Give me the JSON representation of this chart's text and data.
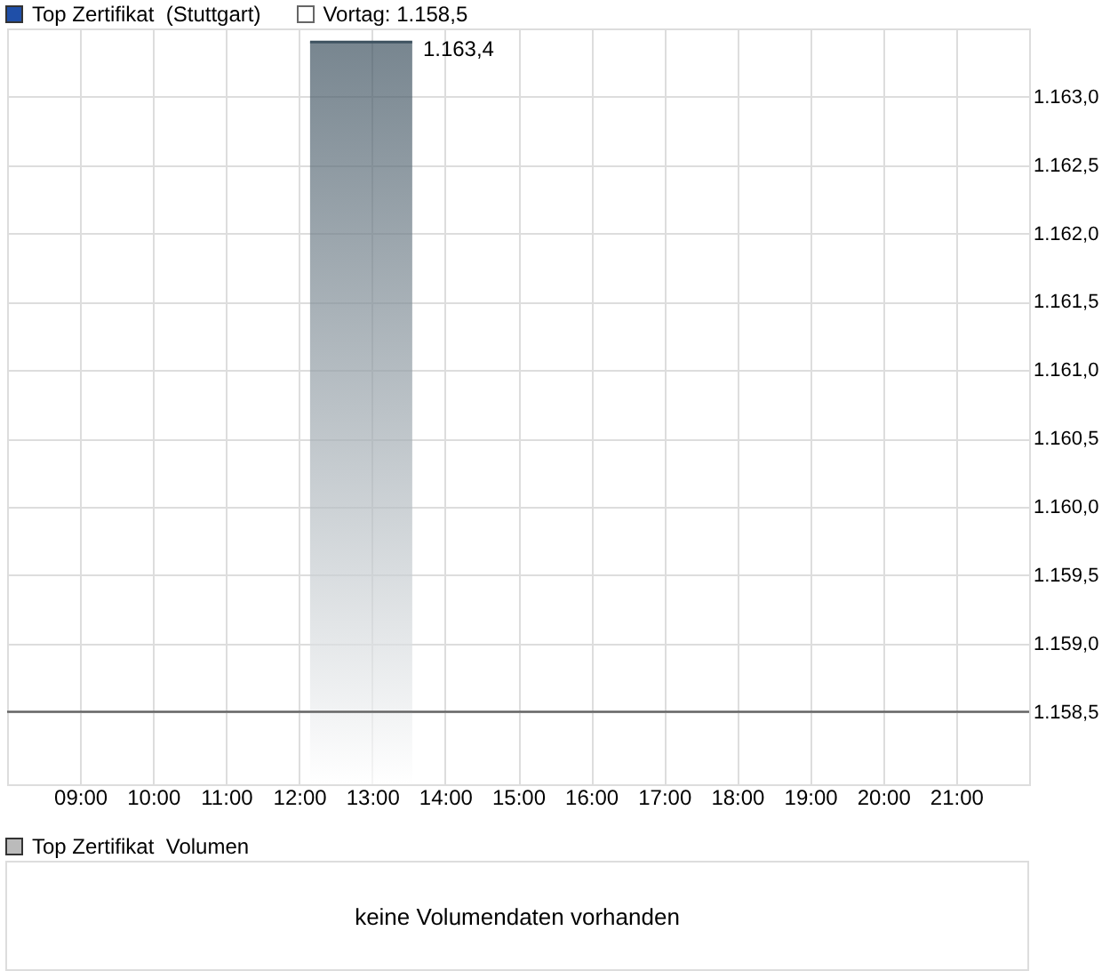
{
  "chart_data": [
    {
      "type": "area",
      "title": "Top Zertifikat  (Stuttgart)",
      "x": [
        12.15,
        13.55
      ],
      "series": [
        {
          "color": "#3e5260",
          "values": [
            1163.4,
            1163.4
          ],
          "value_labels": [
            null,
            "1.163,4"
          ]
        }
      ],
      "xlim": [
        8,
        22
      ],
      "xticks": [
        {
          "value": 9,
          "label": "09:00"
        },
        {
          "value": 10,
          "label": "10:00"
        },
        {
          "value": 11,
          "label": "11:00"
        },
        {
          "value": 12,
          "label": "12:00"
        },
        {
          "value": 13,
          "label": "13:00"
        },
        {
          "value": 14,
          "label": "14:00"
        },
        {
          "value": 15,
          "label": "15:00"
        },
        {
          "value": 16,
          "label": "16:00"
        },
        {
          "value": 17,
          "label": "17:00"
        },
        {
          "value": 18,
          "label": "18:00"
        },
        {
          "value": 19,
          "label": "19:00"
        },
        {
          "value": 20,
          "label": "20:00"
        },
        {
          "value": 21,
          "label": "21:00"
        }
      ],
      "ylim": [
        1157.97,
        1163.5
      ],
      "yticks": [
        {
          "value": 1158.5,
          "label": "1.158,5"
        },
        {
          "value": 1159,
          "label": "1.159,0"
        },
        {
          "value": 1159.5,
          "label": "1.159,5"
        },
        {
          "value": 1160,
          "label": "1.160,0"
        },
        {
          "value": 1160.5,
          "label": "1.160,5"
        },
        {
          "value": 1161,
          "label": "1.161,0"
        },
        {
          "value": 1161.5,
          "label": "1.161,5"
        },
        {
          "value": 1162,
          "label": "1.162,0"
        },
        {
          "value": 1162.5,
          "label": "1.162,5"
        },
        {
          "value": 1163,
          "label": "1.163,0"
        }
      ],
      "ref_lines": [
        {
          "axis": "y",
          "value": 1158.5,
          "label": "Vortag: 1.158,5",
          "color": "#666666"
        }
      ],
      "grid": true
    },
    {
      "type": "other",
      "title": "Top Zertifikat  Volumen",
      "annotations": [
        "keine Volumendaten vorhanden"
      ]
    }
  ]
}
